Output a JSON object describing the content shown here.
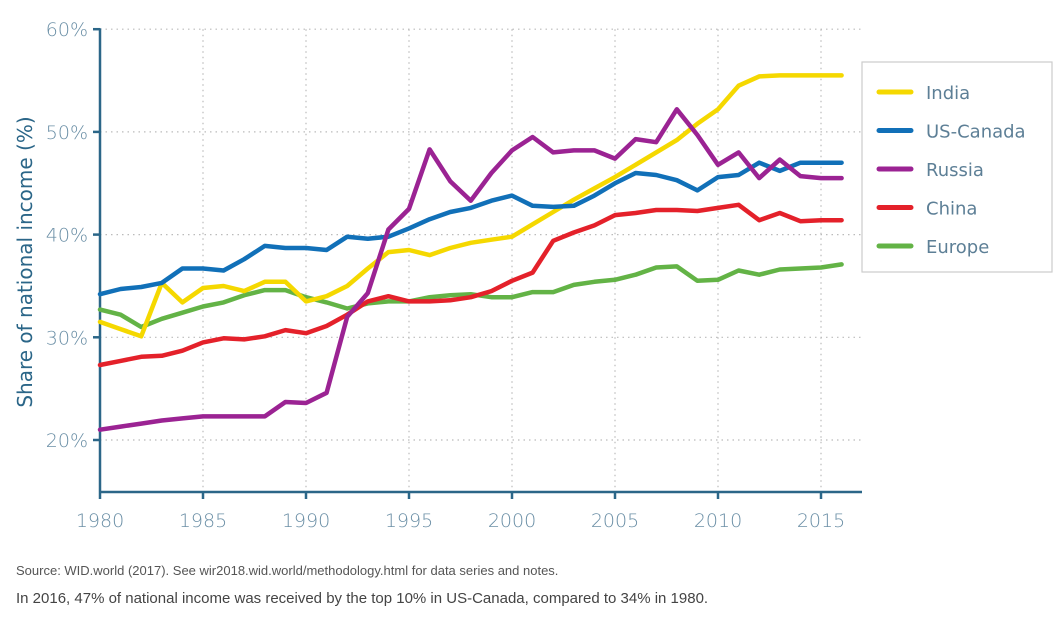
{
  "chart_data": {
    "type": "line",
    "title": "",
    "xlabel": "",
    "ylabel": "Share of national income (%)",
    "xlim": [
      1980,
      2016
    ],
    "ylim": [
      15,
      60
    ],
    "yticks": [
      20,
      30,
      40,
      50,
      60
    ],
    "ytick_labels": [
      "20%",
      "30%",
      "40%",
      "50%",
      "60%"
    ],
    "xticks": [
      1980,
      1985,
      1990,
      1995,
      2000,
      2005,
      2010,
      2015
    ],
    "xtick_labels": [
      "1980",
      "1985",
      "1990",
      "1995",
      "2000",
      "2005",
      "2010",
      "2015"
    ],
    "grid": true,
    "legend_position": "right",
    "x": [
      1980,
      1981,
      1982,
      1983,
      1984,
      1985,
      1986,
      1987,
      1988,
      1989,
      1990,
      1991,
      1992,
      1993,
      1994,
      1995,
      1996,
      1997,
      1998,
      1999,
      2000,
      2001,
      2002,
      2003,
      2004,
      2005,
      2006,
      2007,
      2008,
      2009,
      2010,
      2011,
      2012,
      2013,
      2014,
      2015,
      2016
    ],
    "series": [
      {
        "name": "India",
        "color": "#f5d800",
        "values": [
          31.5,
          30.8,
          30.1,
          35.3,
          33.4,
          34.8,
          35.0,
          34.5,
          35.4,
          35.4,
          33.5,
          34.0,
          35.0,
          36.7,
          38.3,
          38.5,
          38.0,
          38.7,
          39.2,
          39.5,
          39.8,
          41.0,
          42.2,
          43.4,
          44.5,
          45.6,
          46.8,
          48.0,
          49.2,
          50.8,
          52.2,
          54.5,
          55.4,
          55.5,
          55.5,
          55.5,
          55.5
        ]
      },
      {
        "name": "US-Canada",
        "color": "#1170b8",
        "values": [
          34.2,
          34.7,
          34.9,
          35.3,
          36.7,
          36.7,
          36.5,
          37.6,
          38.9,
          38.7,
          38.7,
          38.5,
          39.8,
          39.6,
          39.8,
          40.6,
          41.5,
          42.2,
          42.6,
          43.3,
          43.8,
          42.8,
          42.7,
          42.8,
          43.8,
          45.0,
          46.0,
          45.8,
          45.3,
          44.3,
          45.6,
          45.8,
          47.0,
          46.2,
          47.0,
          47.0,
          47.0
        ]
      },
      {
        "name": "Russia",
        "color": "#9b2393",
        "values": [
          21.0,
          21.3,
          21.6,
          21.9,
          22.1,
          22.3,
          22.3,
          22.3,
          22.3,
          23.7,
          23.6,
          24.6,
          32.0,
          34.3,
          40.5,
          42.5,
          48.3,
          45.2,
          43.3,
          46.0,
          48.2,
          49.5,
          48.0,
          48.2,
          48.2,
          47.4,
          49.3,
          49.0,
          52.2,
          49.7,
          46.8,
          48.0,
          45.5,
          47.3,
          45.7,
          45.5,
          45.5
        ]
      },
      {
        "name": "China",
        "color": "#e4212a",
        "values": [
          27.3,
          27.7,
          28.1,
          28.2,
          28.7,
          29.5,
          29.9,
          29.8,
          30.1,
          30.7,
          30.4,
          31.1,
          32.2,
          33.5,
          34.0,
          33.5,
          33.5,
          33.6,
          33.9,
          34.5,
          35.5,
          36.3,
          39.4,
          40.2,
          40.9,
          41.9,
          42.1,
          42.4,
          42.4,
          42.3,
          42.6,
          42.9,
          41.4,
          42.1,
          41.3,
          41.4,
          41.4
        ]
      },
      {
        "name": "Europe",
        "color": "#63b346",
        "values": [
          32.7,
          32.2,
          31.0,
          31.8,
          32.4,
          33.0,
          33.4,
          34.1,
          34.6,
          34.6,
          33.9,
          33.4,
          32.8,
          33.3,
          33.5,
          33.5,
          33.9,
          34.1,
          34.2,
          33.9,
          33.9,
          34.4,
          34.4,
          35.1,
          35.4,
          35.6,
          36.1,
          36.8,
          36.9,
          35.5,
          35.6,
          36.5,
          36.1,
          36.6,
          36.7,
          36.8,
          37.1
        ]
      }
    ]
  },
  "footer": {
    "source": "Source: WID.world (2017). See wir2018.wid.world/methodology.html for data series and notes.",
    "note": "In 2016, 47% of national income was received by the top 10% in US-Canada, compared to 34% in 1980."
  }
}
